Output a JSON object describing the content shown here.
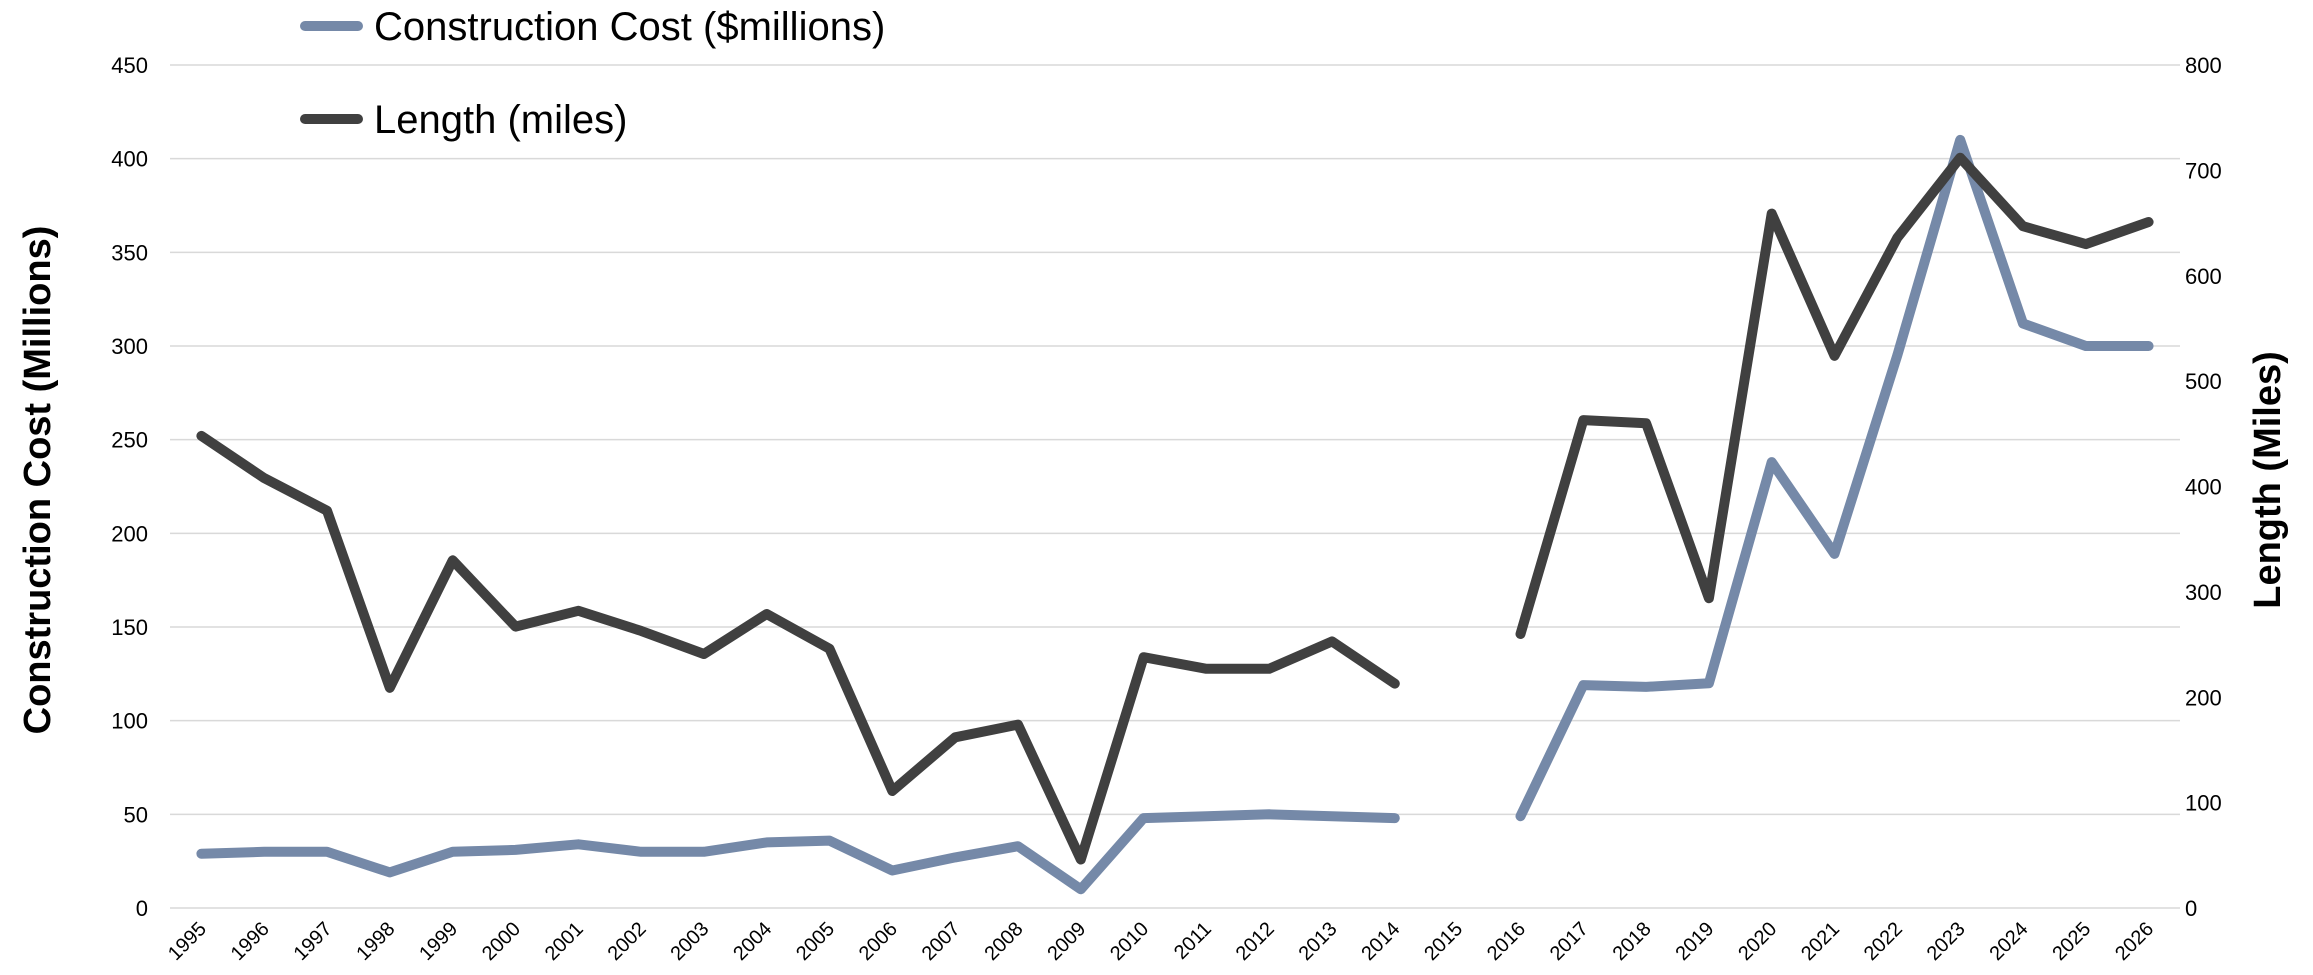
{
  "chart_data": {
    "type": "line",
    "title": "",
    "x": [
      "1995",
      "1996",
      "1997",
      "1998",
      "1999",
      "2000",
      "2001",
      "2002",
      "2003",
      "2004",
      "2005",
      "2006",
      "2007",
      "2008",
      "2009",
      "2010",
      "2011",
      "2012",
      "2013",
      "2014",
      "2015",
      "2016",
      "2017",
      "2018",
      "2019",
      "2020",
      "2021",
      "2022",
      "2023",
      "2024",
      "2025",
      "2026"
    ],
    "y_left": {
      "label": "Construction Cost (Millions)",
      "range": [
        0,
        450
      ],
      "ticks": [
        0,
        50,
        100,
        150,
        200,
        250,
        300,
        350,
        400,
        450
      ]
    },
    "y_right": {
      "label": "Length (Miles)",
      "range": [
        0,
        800
      ],
      "ticks": [
        0,
        100,
        200,
        300,
        400,
        500,
        600,
        700,
        800
      ]
    },
    "grid": true,
    "legend_position": "top-left",
    "series": [
      {
        "name": "Construction Cost ($millions)",
        "axis": "left",
        "color": "#7589a8",
        "values": [
          29,
          30,
          30,
          19,
          30,
          31,
          34,
          30,
          30,
          35,
          36,
          20,
          27,
          33,
          10,
          48,
          49,
          50,
          49,
          48,
          null,
          49,
          119,
          118,
          120,
          238,
          189,
          295,
          410,
          312,
          300,
          300
        ]
      },
      {
        "name": "Length (miles)",
        "axis": "right",
        "color": "#404040",
        "values": [
          448,
          408,
          377,
          209,
          330,
          267,
          282,
          263,
          241,
          279,
          246,
          111,
          162,
          174,
          46,
          238,
          227,
          227,
          253,
          213,
          null,
          260,
          463,
          460,
          294,
          659,
          524,
          636,
          712,
          647,
          630,
          651
        ]
      }
    ]
  }
}
